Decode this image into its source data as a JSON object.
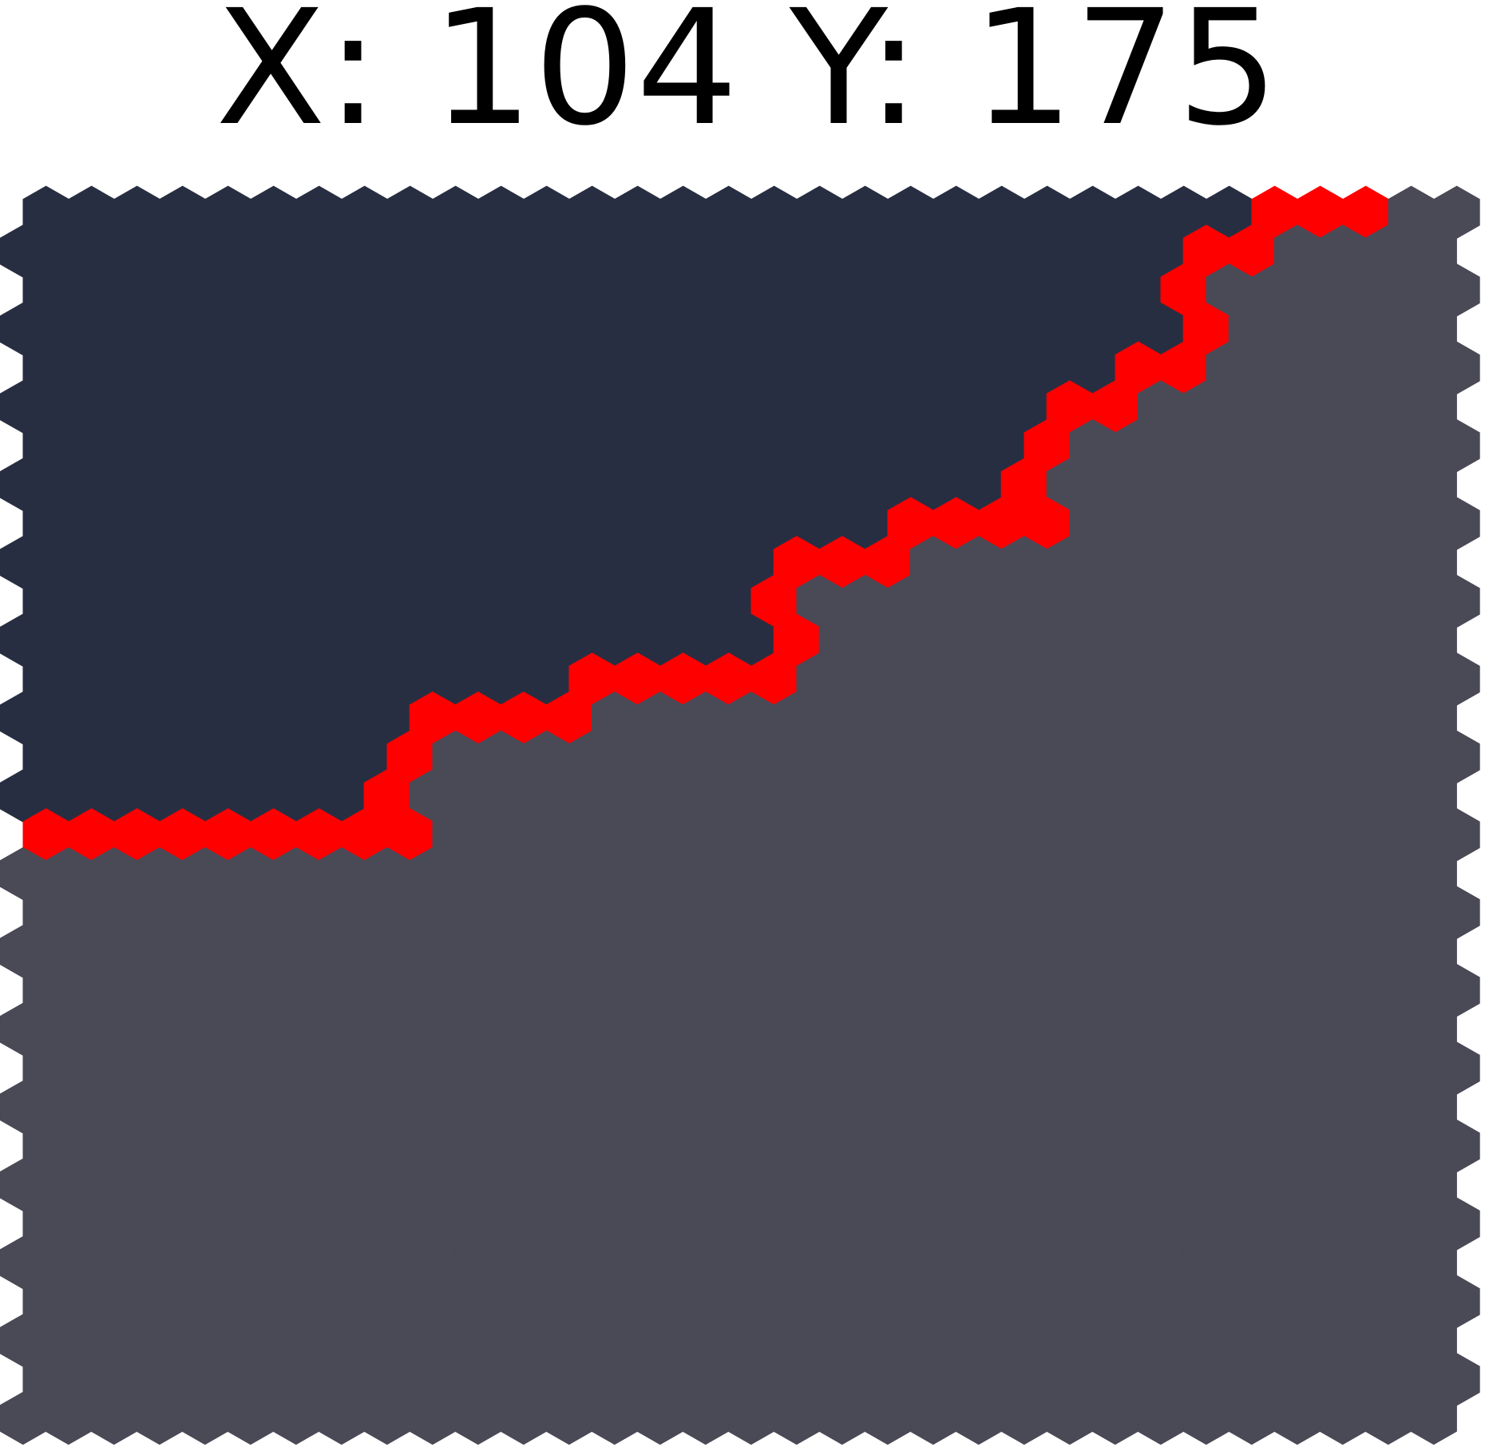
{
  "header": {
    "title": "X: 104 Y: 175"
  }
}
